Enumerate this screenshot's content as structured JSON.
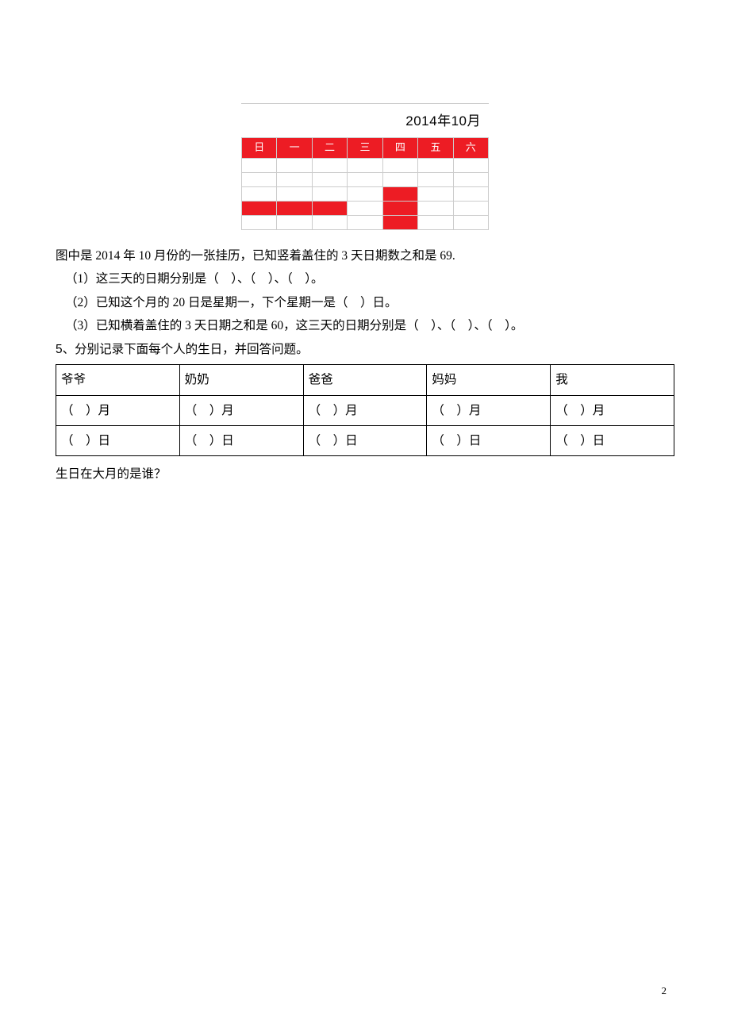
{
  "calendar": {
    "title": "2014年10月",
    "header_bg": "#ed1c24",
    "header_fg": "#ffffff",
    "border_color": "#cccccc",
    "red_cell": "#ed1c24",
    "days": [
      "日",
      "一",
      "二",
      "三",
      "四",
      "五",
      "六"
    ],
    "rows": [
      [
        false,
        false,
        false,
        false,
        false,
        false,
        false
      ],
      [
        false,
        false,
        false,
        false,
        false,
        false,
        false
      ],
      [
        false,
        false,
        false,
        false,
        true,
        false,
        false
      ],
      [
        true,
        true,
        true,
        false,
        true,
        false,
        false
      ],
      [
        false,
        false,
        false,
        false,
        true,
        false,
        false
      ]
    ]
  },
  "text": {
    "intro": "图中是 2014 年 10 月份的一张挂历，已知竖着盖住的 3 天日期数之和是 69.",
    "q1": "（1）这三天的日期分别是（　）、（　）、（　）。",
    "q2": "（2）已知这个月的 20 日是星期一，下个星期一是（　）日。",
    "q3": "（3）已知横着盖住的 3 天日期之和是 60，这三天的日期分别是（　）、（　）、（　）。",
    "q5_label": "5、分别记录下面每个人的生日，并回答问题。",
    "final": "生日在大月的是谁？"
  },
  "birthday_table": {
    "headers": [
      "爷爷",
      "奶奶",
      "爸爸",
      "妈妈",
      "我"
    ],
    "row_month": [
      "（　）月",
      "（　）月",
      "（　）月",
      "（　）月",
      "（　）月"
    ],
    "row_day": [
      "（　）日",
      "（　）日",
      "（　）日",
      "（　）日",
      "（　）日"
    ]
  },
  "page_number": "2"
}
